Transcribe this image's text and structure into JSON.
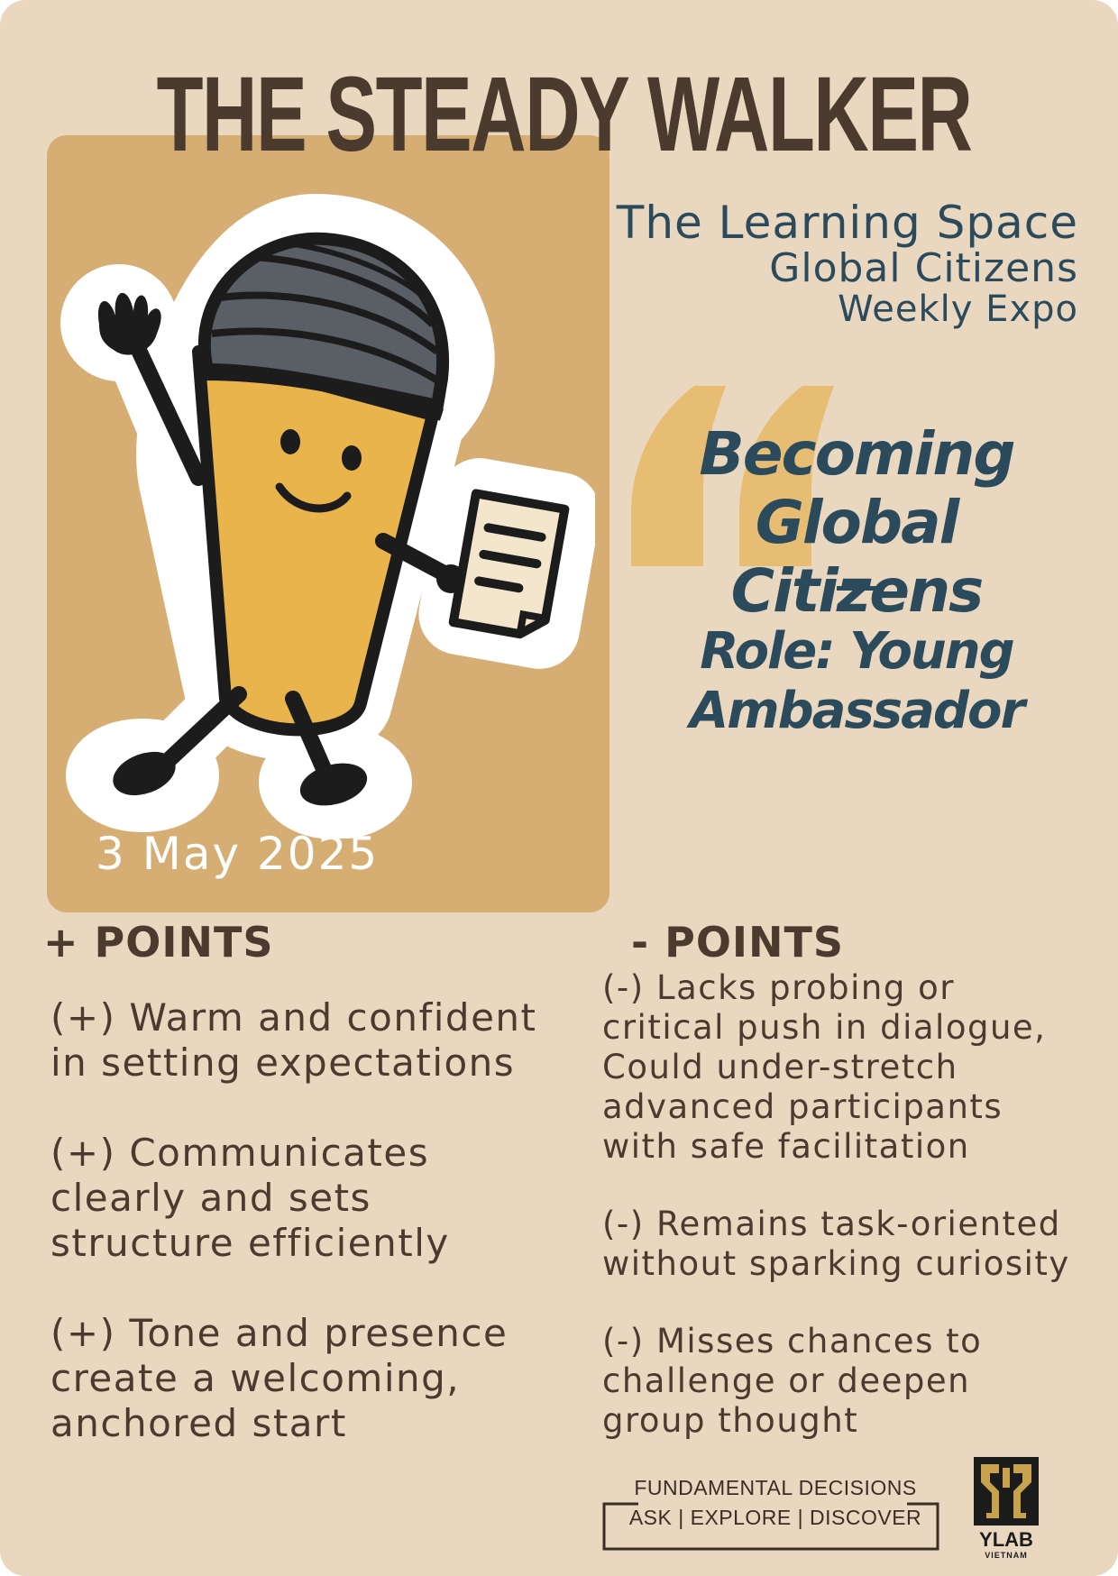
{
  "title": "THE STEADY WALKER",
  "date": "3 May 2025",
  "organization": {
    "line1": "The Learning Space",
    "line2": "Global Citizens",
    "line3": "Weekly Expo"
  },
  "headline": {
    "line1": "Becoming",
    "line2": "Global Citizens",
    "role_line1": "Role: Young",
    "role_line2": "Ambassador"
  },
  "plus_section": {
    "heading": "+ POINTS",
    "items": [
      "(+) Warm and confident\nin setting expectations",
      "(+) Communicates\nclearly and sets\nstructure efficiently",
      "(+) Tone and presence\ncreate a welcoming,\nanchored start"
    ]
  },
  "minus_section": {
    "heading": "- POINTS",
    "items": [
      "(-) Lacks probing or\ncritical push in dialogue,\nCould under-stretch\nadvanced participants\nwith safe facilitation",
      "(-) Remains task-oriented\nwithout sparking curiosity",
      "(-) Misses chances to\nchallenge or deepen\ngroup thought"
    ]
  },
  "footer": {
    "line1": "FUNDAMENTAL DECISIONS",
    "line2": "ASK | EXPLORE | DISCOVER"
  },
  "logo": {
    "name": "YLAB",
    "sub": "VIETNAM"
  },
  "icons": {
    "mascot": "microphone-mascot-icon",
    "quote": "quote-mark-icon",
    "logo": "ylab-logo-icon"
  },
  "colors": {
    "background": "#e9d8bf",
    "photo_box": "#d6ae73",
    "title": "#4a3b2e",
    "accent_text": "#2b4a5c",
    "quote_mark": "#e7bd73"
  }
}
